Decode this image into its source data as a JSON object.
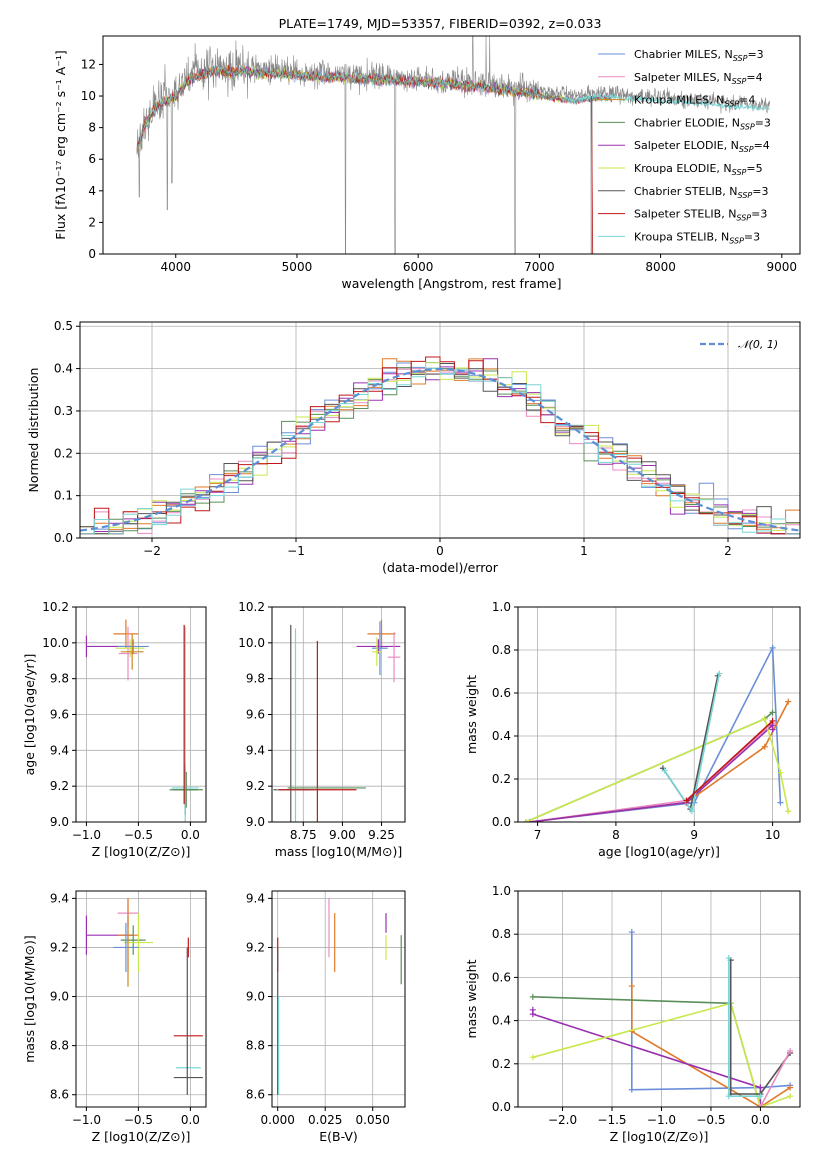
{
  "figure_title": "PLATE=1749, MJD=53357, FIBERID=0392, z=0.033",
  "colors": {
    "chabrier_miles": "#6a8fd8",
    "salpeter_miles": "#e98cc3",
    "kroupa_miles": "#cf8a1e",
    "chabrier_elodie": "#5a8f5a",
    "salpeter_elodie": "#9a30b0",
    "kroupa_elodie": "#c8e84c",
    "chabrier_stelib": "#555555",
    "salpeter_stelib": "#c01818",
    "kroupa_stelib": "#7ad6d6",
    "orange": "#e07a2a",
    "grid": "#b0b0b0",
    "gaussian": "#5b8fd6"
  },
  "chart_data": [
    {
      "id": "spectrum",
      "type": "line",
      "title": "PLATE=1749, MJD=53357, FIBERID=0392, z=0.033",
      "xlabel": "wavelength [Angstrom, rest frame]",
      "ylabel": "Flux [fλ10⁻¹⁷ erg cm⁻² s⁻¹ A⁻¹]",
      "xlim": [
        3400,
        9150
      ],
      "ylim": [
        0,
        13.8
      ],
      "xticks": [
        4000,
        5000,
        6000,
        7000,
        8000,
        9000
      ],
      "yticks": [
        0,
        2,
        4,
        6,
        8,
        10,
        12
      ],
      "grid": false,
      "legend_position": "top-right",
      "data_range": [
        3680,
        8900
      ],
      "legend": [
        {
          "prefix": "Chabrier MILES, N",
          "sub": "SSP",
          "suffix": "=3",
          "color_key": "chabrier_miles"
        },
        {
          "prefix": "Salpeter MILES, N",
          "sub": "SSP",
          "suffix": "=4",
          "color_key": "salpeter_miles"
        },
        {
          "prefix": "Kroupa MILES, N",
          "sub": "SSP",
          "suffix": "=4",
          "color_key": "kroupa_miles"
        },
        {
          "prefix": "Chabrier ELODIE, N",
          "sub": "SSP",
          "suffix": "=3",
          "color_key": "chabrier_elodie"
        },
        {
          "prefix": "Salpeter ELODIE, N",
          "sub": "SSP",
          "suffix": "=4",
          "color_key": "salpeter_elodie"
        },
        {
          "prefix": "Kroupa ELODIE, N",
          "sub": "SSP",
          "suffix": "=5",
          "color_key": "kroupa_elodie"
        },
        {
          "prefix": "Chabrier STELIB, N",
          "sub": "SSP",
          "suffix": "=3",
          "color_key": "chabrier_stelib"
        },
        {
          "prefix": "Salpeter STELIB, N",
          "sub": "SSP",
          "suffix": "=3",
          "color_key": "salpeter_stelib"
        },
        {
          "prefix": "Kroupa STELIB, N",
          "sub": "SSP",
          "suffix": "=3",
          "color_key": "kroupa_stelib"
        }
      ],
      "continuum_anchors": [
        [
          3680,
          6.8
        ],
        [
          3750,
          8.5
        ],
        [
          3850,
          9.6
        ],
        [
          4000,
          10.2
        ],
        [
          4100,
          11.2
        ],
        [
          4300,
          11.8
        ],
        [
          4600,
          11.7
        ],
        [
          5000,
          11.5
        ],
        [
          5500,
          11.3
        ],
        [
          6000,
          11.1
        ],
        [
          6500,
          10.8
        ],
        [
          7000,
          10.3
        ],
        [
          7300,
          10.0
        ],
        [
          7500,
          10.2
        ],
        [
          8000,
          9.9
        ],
        [
          8500,
          9.6
        ],
        [
          8900,
          9.4
        ]
      ],
      "dips": [
        [
          3700,
          3.6
        ],
        [
          3930,
          2.8
        ],
        [
          3968,
          4.5
        ],
        [
          5400,
          0.0
        ],
        [
          5810,
          0.0
        ],
        [
          6800,
          0.0
        ],
        [
          7430,
          0.0
        ]
      ],
      "spikes": [
        [
          6450,
          13.8
        ],
        [
          6560,
          13.8
        ],
        [
          6590,
          13.8
        ]
      ]
    },
    {
      "id": "residuals",
      "type": "histogram",
      "xlabel": "(data-model)/error",
      "ylabel": "Normed distribution",
      "xlim": [
        -2.5,
        2.5
      ],
      "ylim": [
        0,
        0.51
      ],
      "xticks": [
        -2,
        -1,
        0,
        1,
        2
      ],
      "yticks": [
        0.0,
        0.1,
        0.2,
        0.3,
        0.4,
        0.5
      ],
      "grid": true,
      "legend_position": "top-right",
      "legend": [
        {
          "label": "𝒩(0, 1)",
          "color_key": "gaussian",
          "style": "dashed"
        }
      ],
      "bin_width": 0.1,
      "series_color_keys": [
        "chabrier_miles",
        "salpeter_miles",
        "orange",
        "chabrier_elodie",
        "salpeter_elodie",
        "kroupa_elodie",
        "chabrier_stelib",
        "salpeter_stelib",
        "kroupa_stelib"
      ]
    },
    {
      "id": "age_vs_Z",
      "type": "errorbar",
      "xlabel": "Z [log10(Z/Z⊙)]",
      "ylabel": "age  [log10(age/yr)]",
      "xlim": [
        -1.1,
        0.15
      ],
      "ylim": [
        9.0,
        10.2
      ],
      "xticks": [
        -1.0,
        -0.5,
        0.0
      ],
      "yticks": [
        9.0,
        9.2,
        9.4,
        9.6,
        9.8,
        10.0,
        10.2
      ],
      "grid": true,
      "points": [
        {
          "x": -1.0,
          "y": 9.98,
          "xerr": 0.0,
          "yerr": 0.06,
          "xerr2": 0.45,
          "color_key": "salpeter_elodie"
        },
        {
          "x": -0.62,
          "y": 10.05,
          "xerr": 0.12,
          "yerr": 0.08,
          "color_key": "orange"
        },
        {
          "x": -0.6,
          "y": 9.94,
          "xerr": 0.09,
          "yerr": 0.15,
          "color_key": "salpeter_miles"
        },
        {
          "x": -0.58,
          "y": 9.97,
          "xerr": 0.14,
          "yerr": 0.05,
          "color_key": "kroupa_elodie"
        },
        {
          "x": -0.55,
          "y": 9.98,
          "xerr": 0.15,
          "yerr": 0.04,
          "color_key": "chabrier_miles"
        },
        {
          "x": -0.56,
          "y": 9.95,
          "xerr": 0.11,
          "yerr": 0.1,
          "color_key": "kroupa_miles"
        },
        {
          "x": -0.05,
          "y": 9.18,
          "xerr": 0.12,
          "yerr": 0.14,
          "color_key": "chabrier_stelib"
        },
        {
          "x": -0.05,
          "y": 9.19,
          "xerr": 0.13,
          "yerr": 0.9,
          "color_key": "kroupa_stelib"
        },
        {
          "x": -0.04,
          "y": 9.18,
          "xerr": 0.16,
          "yerr": 0.1,
          "color_key": "chabrier_elodie"
        },
        {
          "x": -0.06,
          "y": 9.6,
          "xerr": 0.0,
          "yerr": 0.5,
          "color_key": "salpeter_stelib"
        }
      ]
    },
    {
      "id": "age_vs_mass",
      "type": "errorbar",
      "xlabel": "mass [log10(M/M⊙)]",
      "ylabel": "",
      "xlim": [
        8.55,
        9.4
      ],
      "ylim": [
        9.0,
        10.2
      ],
      "xticks": [
        8.75,
        9.0,
        9.25
      ],
      "yticks": [
        9.0,
        9.2,
        9.4,
        9.6,
        9.8,
        10.0,
        10.2
      ],
      "grid": true,
      "points": [
        {
          "x": 9.25,
          "y": 10.05,
          "xerr": 0.09,
          "yerr": 0.08,
          "color_key": "orange"
        },
        {
          "x": 9.23,
          "y": 9.98,
          "xerr": 0.14,
          "yerr": 0.04,
          "color_key": "salpeter_elodie"
        },
        {
          "x": 9.24,
          "y": 9.97,
          "xerr": 0.05,
          "yerr": 0.15,
          "color_key": "chabrier_miles"
        },
        {
          "x": 9.33,
          "y": 9.92,
          "xerr": 0.04,
          "yerr": 0.14,
          "color_key": "salpeter_miles"
        },
        {
          "x": 9.22,
          "y": 9.95,
          "xerr": 0.03,
          "yerr": 0.08,
          "color_key": "kroupa_elodie"
        },
        {
          "x": 8.67,
          "y": 9.18,
          "xerr": 0.11,
          "yerr": 0.92,
          "color_key": "chabrier_stelib"
        },
        {
          "x": 8.7,
          "y": 9.18,
          "xerr": 0.12,
          "yerr": 0.9,
          "color_key": "kroupa_stelib"
        },
        {
          "x": 8.84,
          "y": 9.18,
          "xerr": 0.25,
          "yerr": 0.83,
          "color_key": "salpeter_stelib"
        },
        {
          "x": 8.9,
          "y": 9.19,
          "xerr": 0.25,
          "yerr": 0.0,
          "color_key": "chabrier_elodie"
        }
      ]
    },
    {
      "id": "massweight_vs_age",
      "type": "line",
      "xlabel": "age  [log10(age/yr)]",
      "ylabel": "mass weight",
      "xlim": [
        6.75,
        10.35
      ],
      "ylim": [
        0.0,
        1.0
      ],
      "xticks": [
        7,
        8,
        9,
        10
      ],
      "yticks": [
        0.0,
        0.2,
        0.4,
        0.6,
        0.8,
        1.0
      ],
      "grid": true,
      "series": [
        {
          "color_key": "chabrier_miles",
          "x": [
            6.9,
            9.0,
            10.0,
            10.1
          ],
          "y": [
            0.0,
            0.09,
            0.81,
            0.09
          ]
        },
        {
          "color_key": "salpeter_miles",
          "x": [
            6.9,
            8.9,
            10.0
          ],
          "y": [
            0.0,
            0.1,
            0.46
          ]
        },
        {
          "color_key": "orange",
          "x": [
            6.9,
            8.9,
            9.9,
            10.2
          ],
          "y": [
            0.0,
            0.09,
            0.35,
            0.56
          ]
        },
        {
          "color_key": "chabrier_elodie",
          "x": [
            6.85,
            9.9,
            10.0
          ],
          "y": [
            0.0,
            0.48,
            0.51
          ]
        },
        {
          "color_key": "salpeter_elodie",
          "x": [
            6.9,
            8.9,
            10.0,
            10.0
          ],
          "y": [
            0.0,
            0.09,
            0.45,
            0.43
          ]
        },
        {
          "color_key": "kroupa_elodie",
          "x": [
            6.85,
            9.9,
            10.1,
            10.2
          ],
          "y": [
            0.0,
            0.48,
            0.23,
            0.05
          ]
        },
        {
          "color_key": "chabrier_stelib",
          "x": [
            8.6,
            8.95,
            9.3
          ],
          "y": [
            0.25,
            0.06,
            0.68
          ]
        },
        {
          "color_key": "kroupa_stelib",
          "x": [
            8.62,
            8.97,
            9.32
          ],
          "y": [
            0.24,
            0.05,
            0.69
          ]
        },
        {
          "color_key": "salpeter_stelib",
          "x": [
            8.9,
            10.0
          ],
          "y": [
            0.1,
            0.47
          ]
        }
      ]
    },
    {
      "id": "mass_vs_Z",
      "type": "errorbar",
      "xlabel": "Z [log10(Z/Z⊙)]",
      "ylabel": "mass [log10(M/M⊙)]",
      "xlim": [
        -1.1,
        0.15
      ],
      "ylim": [
        8.55,
        9.43
      ],
      "xticks": [
        -1.0,
        -0.5,
        0.0
      ],
      "yticks": [
        8.6,
        8.8,
        9.0,
        9.2,
        9.4
      ],
      "grid": true,
      "points": [
        {
          "x": -1.0,
          "y": 9.25,
          "xerr": 0.0,
          "yerr": 0.08,
          "xerr2": 0.45,
          "color_key": "salpeter_elodie"
        },
        {
          "x": -0.6,
          "y": 9.34,
          "xerr": 0.1,
          "yerr": 0.06,
          "color_key": "salpeter_miles"
        },
        {
          "x": -0.6,
          "y": 9.25,
          "xerr": 0.1,
          "yerr": 0.15,
          "color_key": "orange"
        },
        {
          "x": -0.55,
          "y": 9.23,
          "xerr": 0.12,
          "yerr": 0.06,
          "color_key": "chabrier_elodie"
        },
        {
          "x": -0.5,
          "y": 9.22,
          "xerr": 0.14,
          "yerr": 0.12,
          "color_key": "kroupa_elodie"
        },
        {
          "x": -0.62,
          "y": 9.2,
          "xerr": 0.12,
          "yerr": 0.1,
          "color_key": "chabrier_miles"
        },
        {
          "x": -0.6,
          "y": 9.18,
          "xerr": 0.0,
          "yerr": 0.14,
          "color_key": "kroupa_miles"
        },
        {
          "x": -0.02,
          "y": 8.84,
          "xerr": 0.14,
          "yerr": 0.0,
          "color_key": "salpeter_stelib"
        },
        {
          "x": -0.02,
          "y": 8.71,
          "xerr": 0.12,
          "yerr": 0.0,
          "color_key": "kroupa_stelib"
        },
        {
          "x": -0.02,
          "y": 8.67,
          "xerr": 0.14,
          "yerr": 0.0,
          "color_key": "chabrier_stelib"
        },
        {
          "x": -0.02,
          "y": 9.2,
          "xerr": 0.0,
          "yerr": 0.04,
          "color_key": "salpeter_stelib"
        },
        {
          "x": -0.03,
          "y": 8.9,
          "xerr": 0.0,
          "yerr": 0.3,
          "color_key": "chabrier_stelib"
        }
      ]
    },
    {
      "id": "mass_vs_ebv",
      "type": "errorbar",
      "xlabel": "E(B-V)",
      "ylabel": "",
      "xlim": [
        -0.003,
        0.067
      ],
      "ylim": [
        8.55,
        9.43
      ],
      "xticks": [
        0.0,
        0.025,
        0.05
      ],
      "yticks": [
        8.6,
        8.8,
        9.0,
        9.2,
        9.4
      ],
      "grid": true,
      "points": [
        {
          "x": 0.0,
          "y": 9.17,
          "xerr": 0.0,
          "yerr": 0.07,
          "color_key": "salpeter_stelib"
        },
        {
          "x": 0.0,
          "y": 8.9,
          "xerr": 0.0,
          "yerr": 0.3,
          "color_key": "chabrier_stelib"
        },
        {
          "x": 0.0005,
          "y": 8.8,
          "xerr": 0.0,
          "yerr": 0.2,
          "color_key": "kroupa_stelib"
        },
        {
          "x": 0.027,
          "y": 9.28,
          "xerr": 0.0,
          "yerr": 0.12,
          "color_key": "salpeter_miles"
        },
        {
          "x": 0.03,
          "y": 9.22,
          "xerr": 0.0,
          "yerr": 0.12,
          "color_key": "orange"
        },
        {
          "x": 0.057,
          "y": 9.3,
          "xerr": 0.0,
          "yerr": 0.04,
          "color_key": "salpeter_elodie"
        },
        {
          "x": 0.057,
          "y": 9.2,
          "xerr": 0.0,
          "yerr": 0.05,
          "color_key": "kroupa_elodie"
        },
        {
          "x": 0.065,
          "y": 9.15,
          "xerr": 0.0,
          "yerr": 0.1,
          "color_key": "chabrier_elodie"
        }
      ]
    },
    {
      "id": "massweight_vs_Z",
      "type": "line",
      "xlabel": "Z [log10(Z/Z⊙)]",
      "ylabel": "mass weight",
      "xlim": [
        -2.45,
        0.4
      ],
      "ylim": [
        0.0,
        1.0
      ],
      "xticks": [
        -2.0,
        -1.5,
        -1.0,
        -0.5,
        0.0
      ],
      "yticks": [
        0.0,
        0.2,
        0.4,
        0.6,
        0.8,
        1.0
      ],
      "grid": true,
      "series": [
        {
          "color_key": "chabrier_miles",
          "x": [
            -1.3,
            -1.3,
            0.0,
            0.3
          ],
          "y": [
            0.81,
            0.08,
            0.09,
            0.1
          ]
        },
        {
          "color_key": "orange",
          "x": [
            -1.3,
            -1.3,
            0.0,
            0.3
          ],
          "y": [
            0.56,
            0.35,
            0.0,
            0.09
          ]
        },
        {
          "color_key": "chabrier_elodie",
          "x": [
            -2.3,
            -0.3,
            0.0
          ],
          "y": [
            0.51,
            0.48,
            0.0
          ]
        },
        {
          "color_key": "salpeter_elodie",
          "x": [
            -2.3,
            -2.3,
            0.0,
            0.0
          ],
          "y": [
            0.45,
            0.43,
            0.09,
            0.0
          ]
        },
        {
          "color_key": "kroupa_elodie",
          "x": [
            -2.3,
            -0.3,
            0.0,
            0.3
          ],
          "y": [
            0.23,
            0.48,
            0.0,
            0.05
          ]
        },
        {
          "color_key": "chabrier_stelib",
          "x": [
            -0.3,
            -0.3,
            0.0,
            0.3
          ],
          "y": [
            0.68,
            0.06,
            0.06,
            0.25
          ]
        },
        {
          "color_key": "kroupa_stelib",
          "x": [
            -0.32,
            -0.32,
            0.0
          ],
          "y": [
            0.69,
            0.05,
            0.05
          ]
        },
        {
          "color_key": "salpeter_miles",
          "x": [
            0.0,
            0.3
          ],
          "y": [
            0.0,
            0.26
          ]
        }
      ]
    }
  ]
}
